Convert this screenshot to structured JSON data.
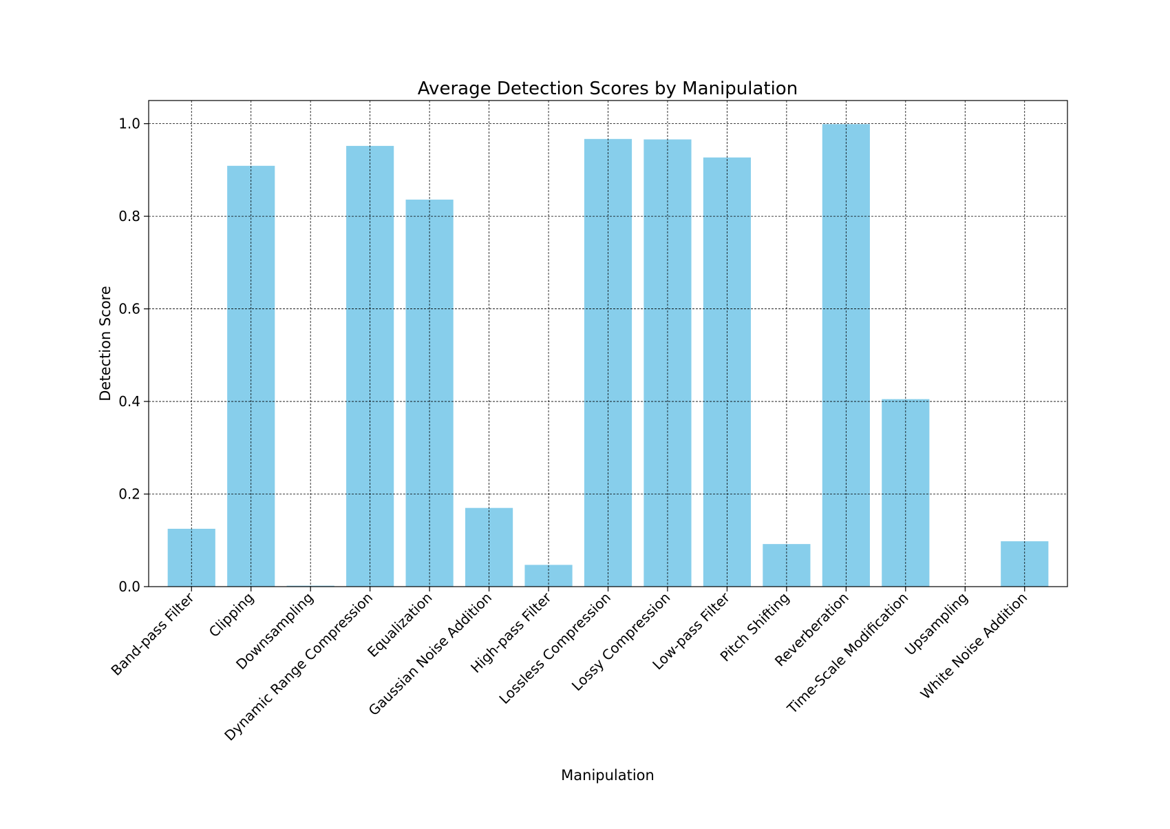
{
  "chart_data": {
    "type": "bar",
    "title": "Average Detection Scores by Manipulation",
    "xlabel": "Manipulation",
    "ylabel": "Detection Score",
    "categories": [
      "Band-pass Filter",
      "Clipping",
      "Downsampling",
      "Dynamic Range Compression",
      "Equalization",
      "Gaussian Noise Addition",
      "High-pass Filter",
      "Lossless Compression",
      "Lossy Compression",
      "Low-pass Filter",
      "Pitch Shifting",
      "Reverberation",
      "Time-Scale Modification",
      "Upsampling",
      "White Noise Addition"
    ],
    "values": [
      0.125,
      0.909,
      0.002,
      0.952,
      0.836,
      0.17,
      0.047,
      0.967,
      0.966,
      0.927,
      0.092,
      0.999,
      0.405,
      0.0,
      0.098
    ],
    "ylim": [
      0,
      1.05
    ],
    "yticks": [
      0.0,
      0.2,
      0.4,
      0.6,
      0.8,
      1.0
    ],
    "ytick_labels": [
      "0.0",
      "0.2",
      "0.4",
      "0.6",
      "0.8",
      "1.0"
    ],
    "grid": true,
    "bar_color": "#87ceeb"
  }
}
